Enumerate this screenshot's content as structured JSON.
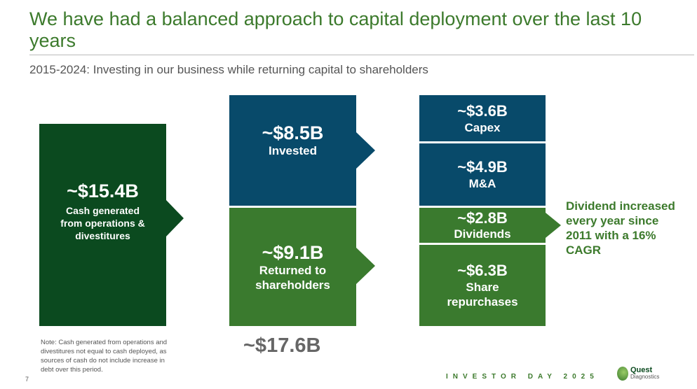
{
  "title": "We have had a balanced approach to capital deployment over the last 10 years",
  "subtitle": "2015-2024: Investing in our business while returning capital to shareholders",
  "colors": {
    "dark_green": "#0b4a1f",
    "blue": "#084a6a",
    "green": "#3a7a2e",
    "title_green": "#3c7a2c"
  },
  "cash": {
    "amount": "~$15.4B",
    "label": "Cash generated from operations & divestitures"
  },
  "invested": {
    "amount": "~$8.5B",
    "label": "Invested"
  },
  "returned": {
    "amount": "~$9.1B",
    "label": "Returned to shareholders"
  },
  "capex": {
    "amount": "~$3.6B",
    "label": "Capex"
  },
  "ma": {
    "amount": "~$4.9B",
    "label": "M&A"
  },
  "dividends": {
    "amount": "~$2.8B",
    "label": "Dividends"
  },
  "repurchases": {
    "amount": "~$6.3B",
    "label": "Share repurchases"
  },
  "total": "~$17.6B",
  "dividend_note": "Dividend increased every year since 2011 with a 16% CAGR",
  "note": "Note: Cash generated from operations and divestitures not equal to cash deployed, as sources of cash do not include increase in debt over this period.",
  "page_number": "7",
  "event": "INVESTOR DAY 2025",
  "logo": {
    "name": "Quest",
    "sub": "Diagnostics"
  }
}
